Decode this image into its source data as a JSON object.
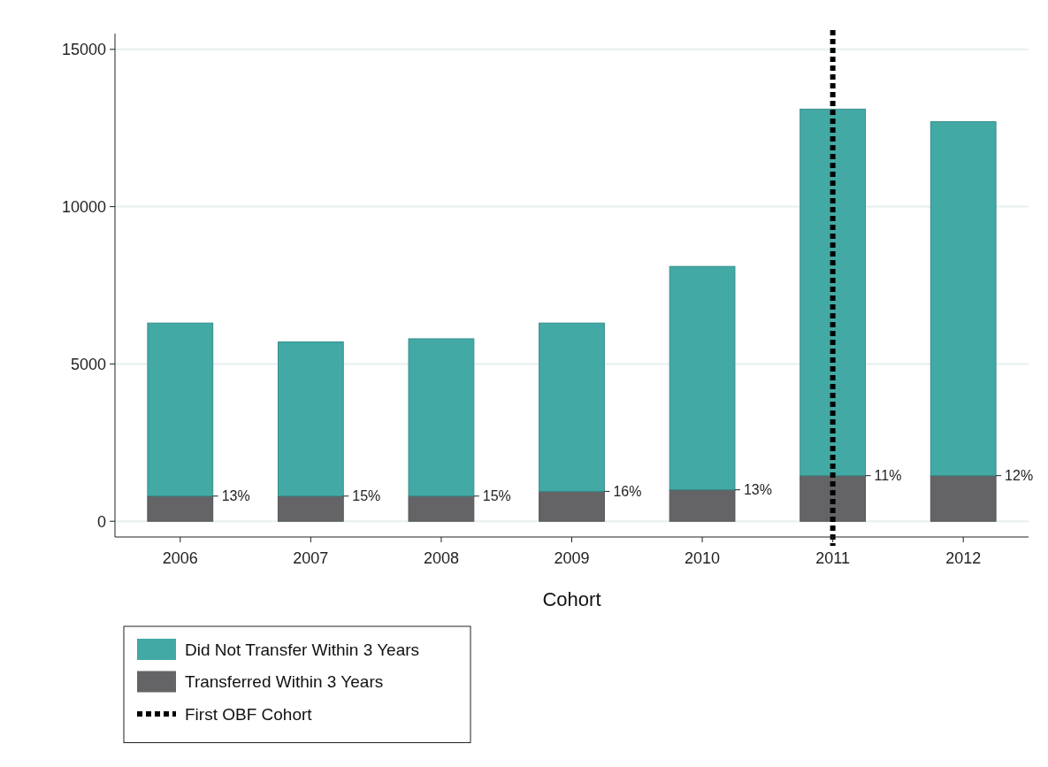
{
  "chart_data": {
    "type": "bar",
    "stacked": true,
    "xlabel": "Cohort",
    "categories": [
      "2006",
      "2007",
      "2008",
      "2009",
      "2010",
      "2011",
      "2012"
    ],
    "series": [
      {
        "name": "Transferred Within 3 Years",
        "color": "#646467",
        "values": [
          800,
          800,
          800,
          950,
          1000,
          1450,
          1450
        ]
      },
      {
        "name": "Did Not Transfer Within 3 Years",
        "color": "#42a9a5",
        "values": [
          5500,
          4900,
          5000,
          5350,
          7100,
          11650,
          11250
        ]
      }
    ],
    "annotations": [
      {
        "text": "13%",
        "x": "2006",
        "y": 800
      },
      {
        "text": "15%",
        "x": "2007",
        "y": 800
      },
      {
        "text": "15%",
        "x": "2008",
        "y": 800
      },
      {
        "text": "16%",
        "x": "2009",
        "y": 950
      },
      {
        "text": "13%",
        "x": "2010",
        "y": 1000
      },
      {
        "text": "11%",
        "x": "2011",
        "y": 1450
      },
      {
        "text": "12%",
        "x": "2012",
        "y": 1450
      }
    ],
    "ylim": [
      -500,
      15500
    ],
    "yticks": [
      0,
      5000,
      10000,
      15000
    ],
    "grid": "y",
    "legend": "bottom left",
    "ref_lines": [
      {
        "axis": "x",
        "value": "2011",
        "label": "First OBF Cohort",
        "color": "#000000",
        "line_style": "dotted"
      }
    ]
  }
}
